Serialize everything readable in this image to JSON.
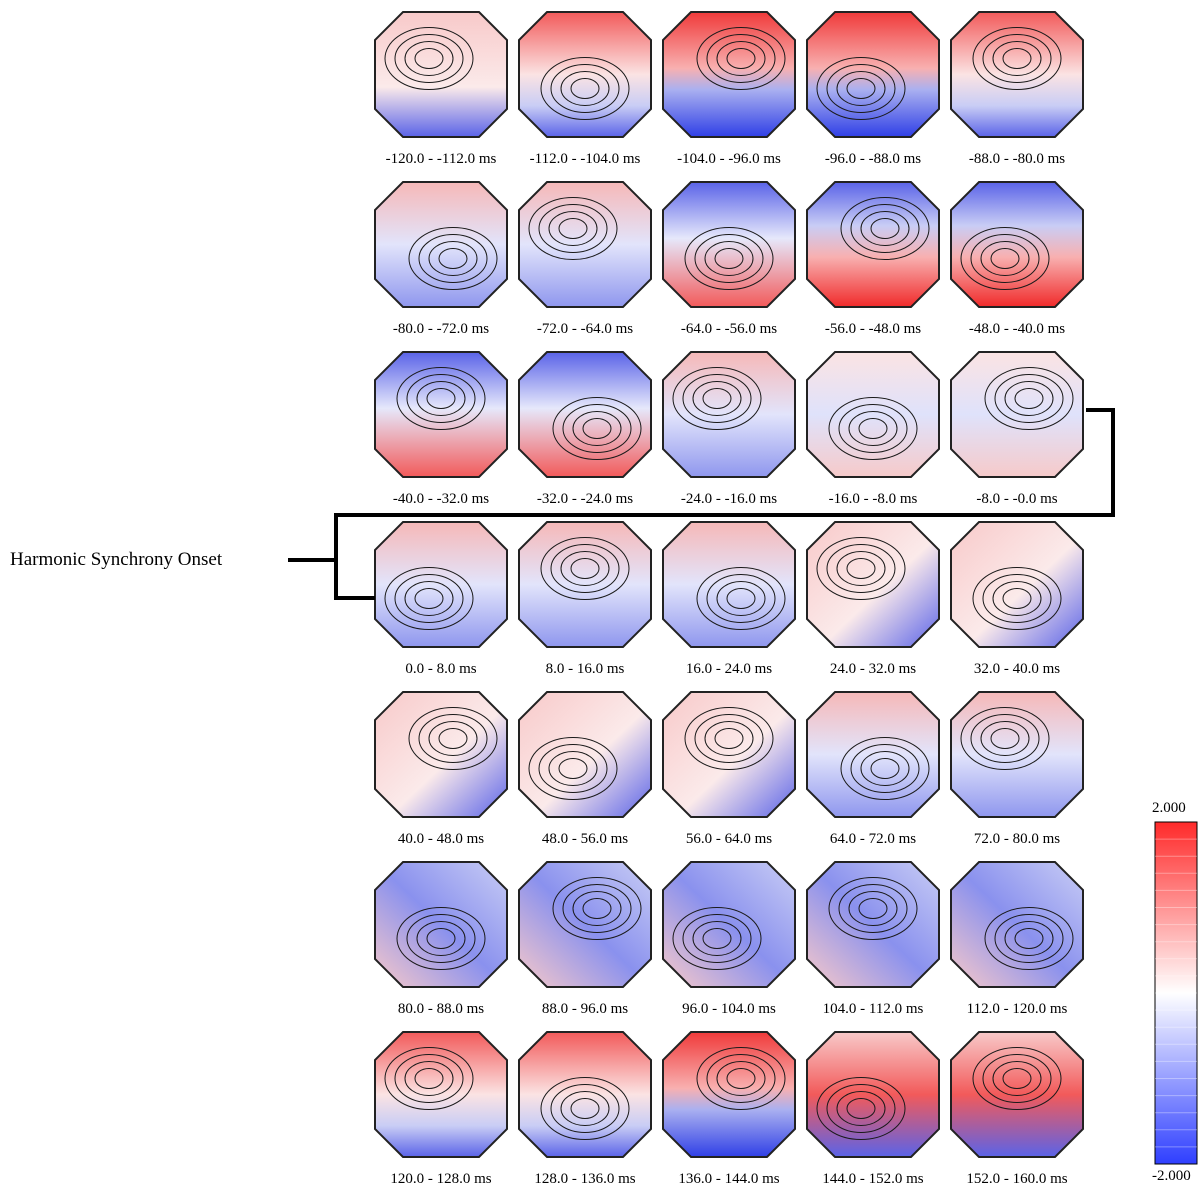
{
  "figure": {
    "onset_label": "Harmonic Synchrony Onset",
    "colorbar": {
      "max_label": "2.000",
      "min_label": "-2.000",
      "max_color": "#ff2a2a",
      "mid_color": "#ffffff",
      "min_color": "#2f3fff"
    },
    "grid": {
      "rows": 7,
      "cols": 5
    },
    "maps": [
      {
        "label": "-120.0 - -112.0 ms",
        "polarity": "weak-front-pos"
      },
      {
        "label": "-112.0 - -104.0 ms",
        "polarity": "front-pos"
      },
      {
        "label": "-104.0 - -96.0 ms",
        "polarity": "front-pos-strong"
      },
      {
        "label": "-96.0 - -88.0 ms",
        "polarity": "front-pos-strong"
      },
      {
        "label": "-88.0 - -80.0 ms",
        "polarity": "front-pos"
      },
      {
        "label": "-80.0 - -72.0 ms",
        "polarity": "mixed"
      },
      {
        "label": "-72.0 - -64.0 ms",
        "polarity": "mixed"
      },
      {
        "label": "-64.0 - -56.0 ms",
        "polarity": "back-pos"
      },
      {
        "label": "-56.0 - -48.0 ms",
        "polarity": "back-pos-strong"
      },
      {
        "label": "-48.0 - -40.0 ms",
        "polarity": "back-pos-strong"
      },
      {
        "label": "-40.0 - -32.0 ms",
        "polarity": "back-pos"
      },
      {
        "label": "-32.0 - -24.0 ms",
        "polarity": "back-pos"
      },
      {
        "label": "-24.0 - -16.0 ms",
        "polarity": "mixed"
      },
      {
        "label": "-16.0 - -8.0 ms",
        "polarity": "weak"
      },
      {
        "label": "-8.0 - -0.0 ms",
        "polarity": "weak"
      },
      {
        "label": "0.0 - 8.0 ms",
        "polarity": "mixed"
      },
      {
        "label": "8.0 - 16.0 ms",
        "polarity": "mixed"
      },
      {
        "label": "16.0 - 24.0 ms",
        "polarity": "mixed"
      },
      {
        "label": "24.0 - 32.0 ms",
        "polarity": "corner-neg"
      },
      {
        "label": "32.0 - 40.0 ms",
        "polarity": "corner-neg"
      },
      {
        "label": "40.0 - 48.0 ms",
        "polarity": "corner-neg"
      },
      {
        "label": "48.0 - 56.0 ms",
        "polarity": "corner-neg"
      },
      {
        "label": "56.0 - 64.0 ms",
        "polarity": "corner-neg"
      },
      {
        "label": "64.0 - 72.0 ms",
        "polarity": "mixed"
      },
      {
        "label": "72.0 - 80.0 ms",
        "polarity": "mixed"
      },
      {
        "label": "80.0 - 88.0 ms",
        "polarity": "center-neg"
      },
      {
        "label": "88.0 - 96.0 ms",
        "polarity": "center-neg"
      },
      {
        "label": "96.0 - 104.0 ms",
        "polarity": "center-neg"
      },
      {
        "label": "104.0 - 112.0 ms",
        "polarity": "center-neg"
      },
      {
        "label": "112.0 - 120.0 ms",
        "polarity": "center-neg"
      },
      {
        "label": "120.0 - 128.0 ms",
        "polarity": "front-pos"
      },
      {
        "label": "128.0 - 136.0 ms",
        "polarity": "front-pos"
      },
      {
        "label": "136.0 - 144.0 ms",
        "polarity": "front-pos-strong"
      },
      {
        "label": "144.0 - 152.0 ms",
        "polarity": "center-pos"
      },
      {
        "label": "152.0 - 160.0 ms",
        "polarity": "center-pos"
      }
    ]
  }
}
